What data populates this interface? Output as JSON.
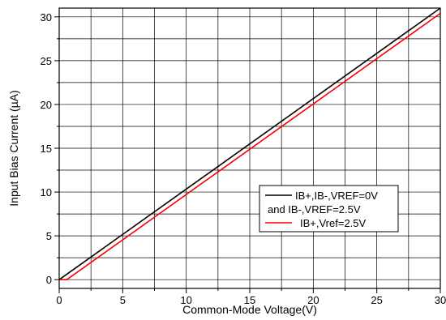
{
  "chart_data": {
    "type": "line",
    "xlabel": "Common-Mode Voltage(V)",
    "ylabel": "Input Bias Current (µA)",
    "xlim": [
      0,
      30
    ],
    "ylim": [
      -1,
      31
    ],
    "x_ticks": [
      0,
      5,
      10,
      15,
      20,
      25,
      30
    ],
    "y_ticks": [
      0,
      5,
      10,
      15,
      20,
      25,
      30
    ],
    "grid": true,
    "legend_position": "center-right",
    "series": [
      {
        "name_lines": [
          "IB+,IB-,VREF=0V",
          "and IB-,VREF=2.5V"
        ],
        "color": "#000000",
        "x": [
          0,
          30
        ],
        "y": [
          0,
          31
        ]
      },
      {
        "name_lines": [
          "IB+,Vref=2.5V"
        ],
        "color": "#ff0000",
        "x": [
          0,
          0.6,
          30
        ],
        "y": [
          0,
          0,
          30.4
        ]
      }
    ]
  }
}
